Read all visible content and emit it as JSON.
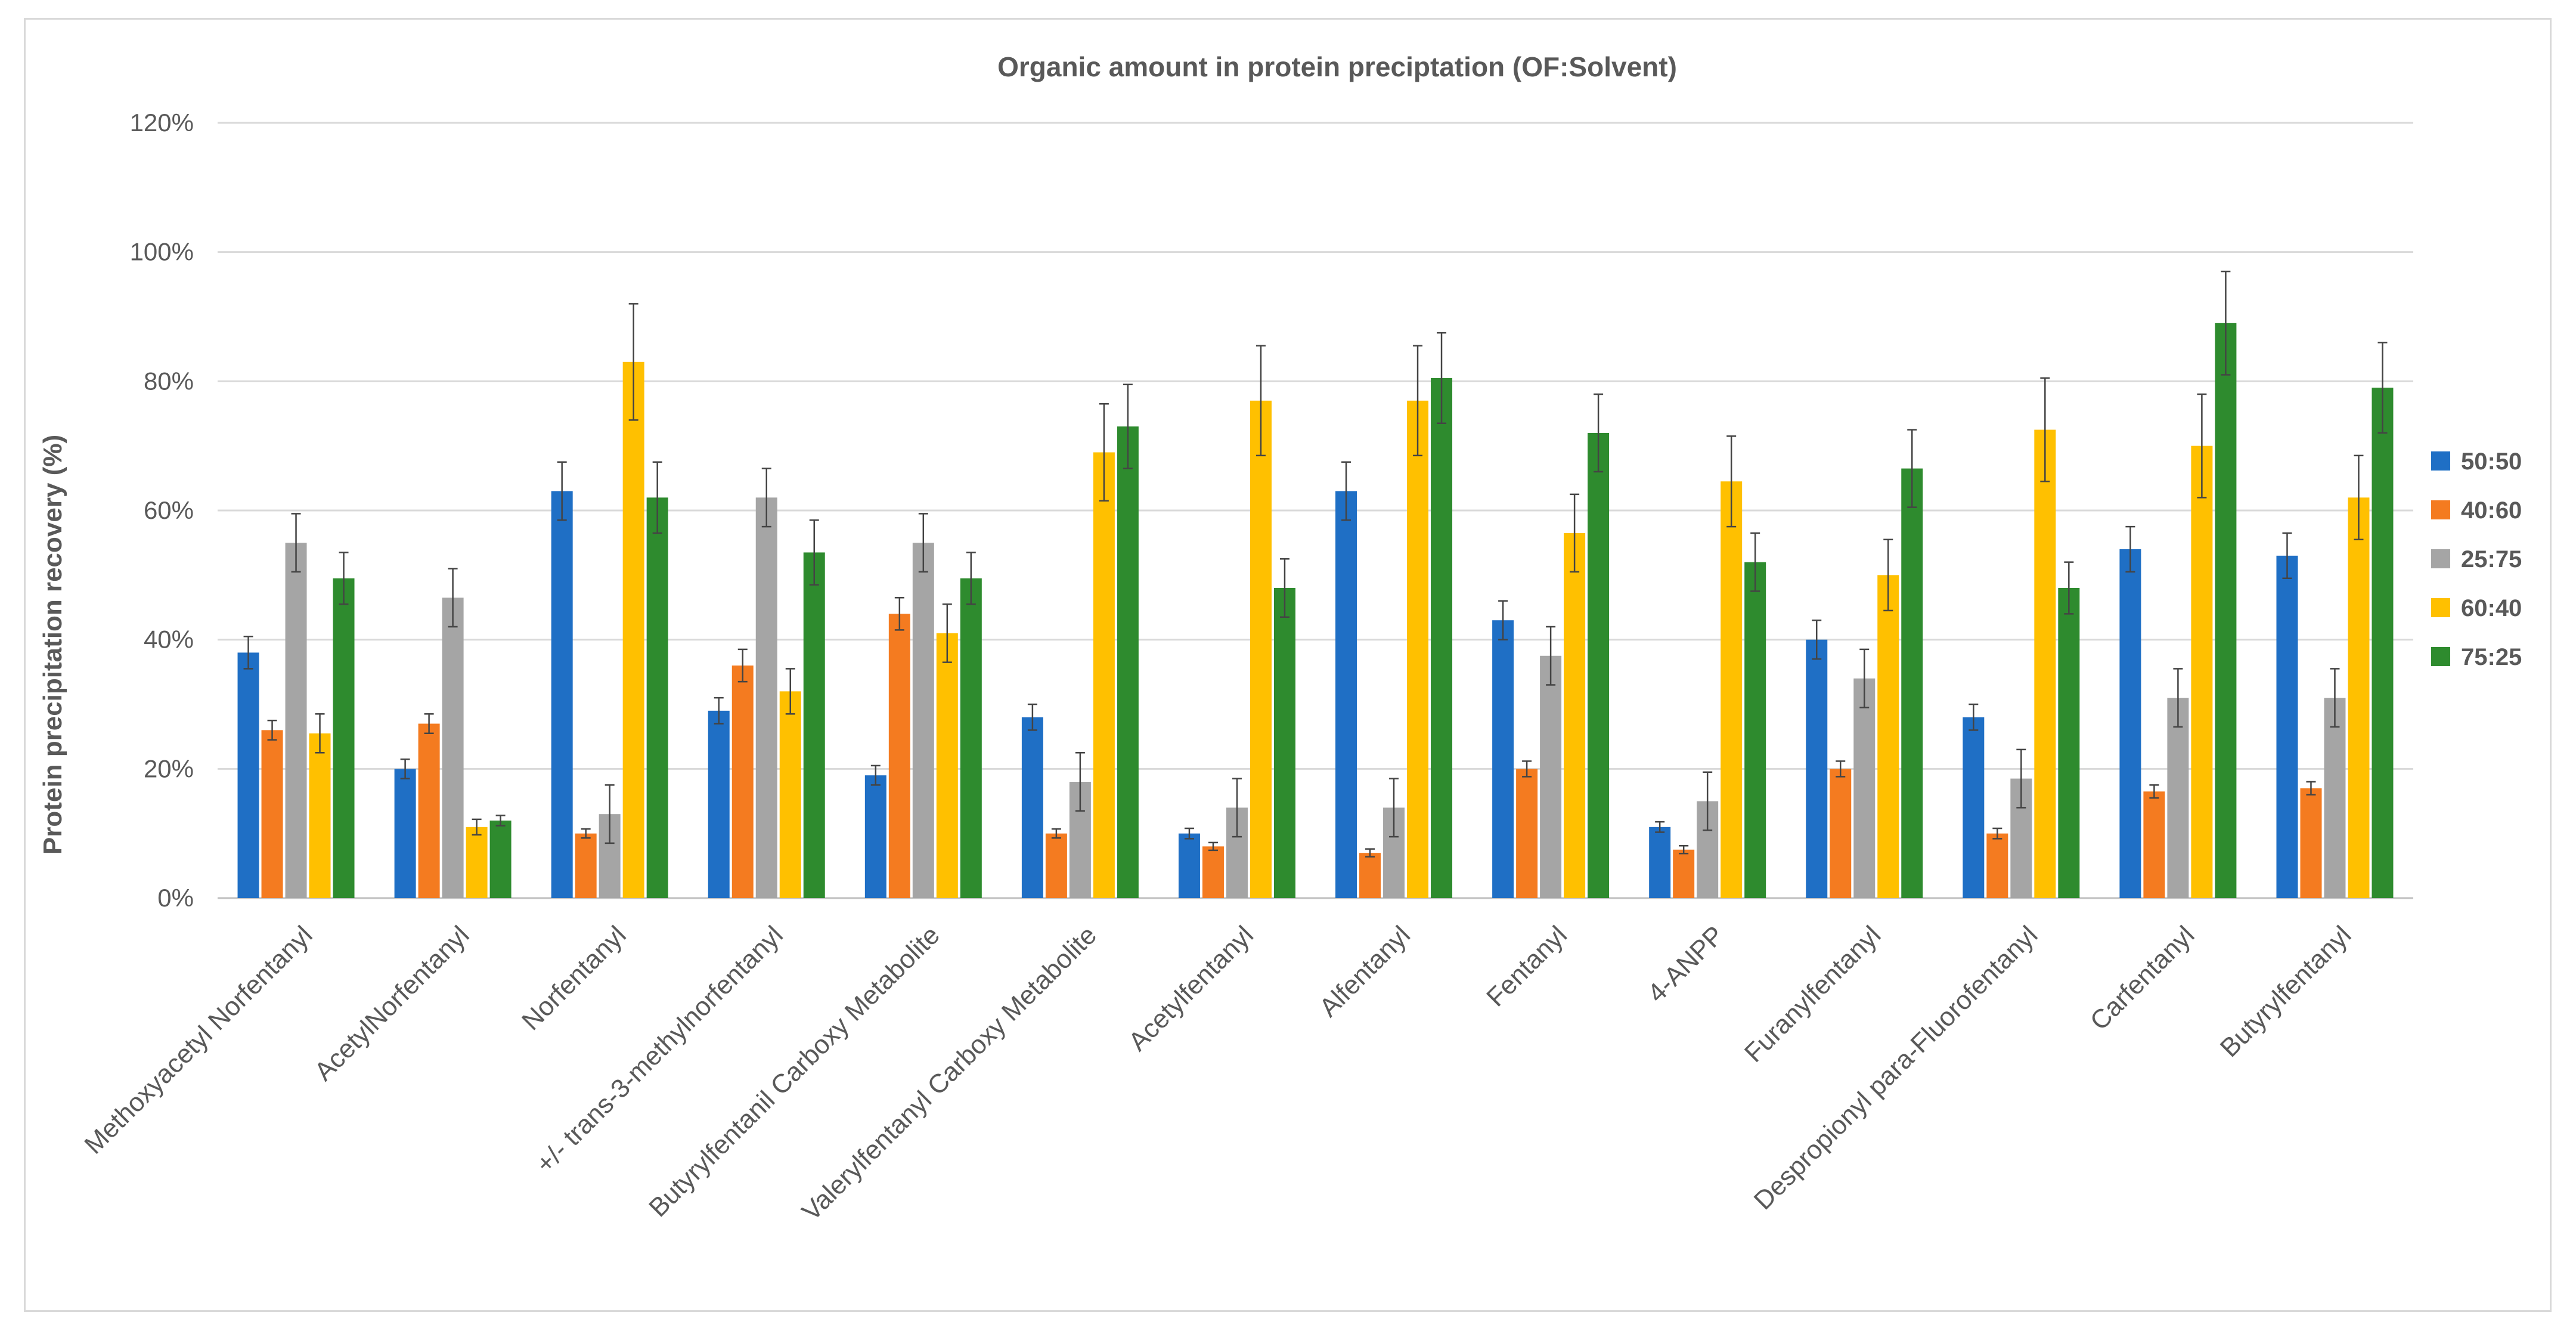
{
  "chart_data": {
    "type": "bar",
    "title": "Organic amount    in protein preciptation (OF:Solvent)",
    "ylabel": "Protein precipitation recovery (%)",
    "xlabel": "",
    "ylim": [
      0,
      120
    ],
    "yticks": [
      "0%",
      "20%",
      "40%",
      "60%",
      "80%",
      "100%",
      "120%"
    ],
    "grid": true,
    "legend_position": "right",
    "categories": [
      "Methoxyacetyl Norfentanyl",
      "AcetylNorfentanyl",
      "Norfentanyl",
      "+/- trans-3-methylnorfentanyl",
      "Butyrylfentanil Carboxy Metabolite",
      "Valerylfentanyl Carboxy Metabolite",
      "Acetylfentanyl",
      "Alfentanyl",
      "Fentanyl",
      "4-ANPP",
      "Furanylfentanyl",
      "Despropionyl para-Fluorofentanyl",
      "Carfentanyl",
      "Butyrylfentanyl"
    ],
    "series": [
      {
        "name": "50:50",
        "color": "#1f6fc5",
        "values": [
          38,
          20,
          63,
          29,
          19,
          28,
          10,
          63,
          43,
          11,
          40,
          28,
          54,
          53
        ],
        "errors": [
          2.5,
          1.5,
          4.5,
          2,
          1.5,
          2,
          0.8,
          4.5,
          3,
          0.8,
          3,
          2,
          3.5,
          3.5
        ]
      },
      {
        "name": "40:60",
        "color": "#f47b20",
        "values": [
          26,
          27,
          10,
          36,
          44,
          10,
          8,
          7,
          20,
          7.5,
          20,
          10,
          16.5,
          17
        ],
        "errors": [
          1.5,
          1.5,
          0.7,
          2.5,
          2.5,
          0.7,
          0.6,
          0.6,
          1.2,
          0.6,
          1.2,
          0.8,
          1,
          1
        ]
      },
      {
        "name": "25:75",
        "color": "#a5a5a5",
        "values": [
          55,
          46.5,
          13,
          62,
          55,
          18,
          14,
          14,
          37.5,
          15,
          34,
          18.5,
          31,
          31
        ],
        "errors": [
          4.5,
          4.5,
          4.5,
          4.5,
          4.5,
          4.5,
          4.5,
          4.5,
          4.5,
          4.5,
          4.5,
          4.5,
          4.5,
          4.5
        ]
      },
      {
        "name": "60:40",
        "color": "#ffc000",
        "values": [
          25.5,
          11,
          83,
          32,
          41,
          69,
          77,
          77,
          56.5,
          64.5,
          50,
          72.5,
          70,
          62
        ],
        "errors": [
          3,
          1.2,
          9,
          3.5,
          4.5,
          7.5,
          8.5,
          8.5,
          6,
          7,
          5.5,
          8,
          8,
          6.5
        ]
      },
      {
        "name": "75:25",
        "color": "#2e8b2e",
        "values": [
          49.5,
          12,
          62,
          53.5,
          49.5,
          73,
          48,
          80.5,
          72,
          52,
          66.5,
          48,
          89,
          79
        ],
        "errors": [
          4,
          0.8,
          5.5,
          5,
          4,
          6.5,
          4.5,
          7,
          6,
          4.5,
          6,
          4,
          8,
          7
        ]
      }
    ]
  }
}
